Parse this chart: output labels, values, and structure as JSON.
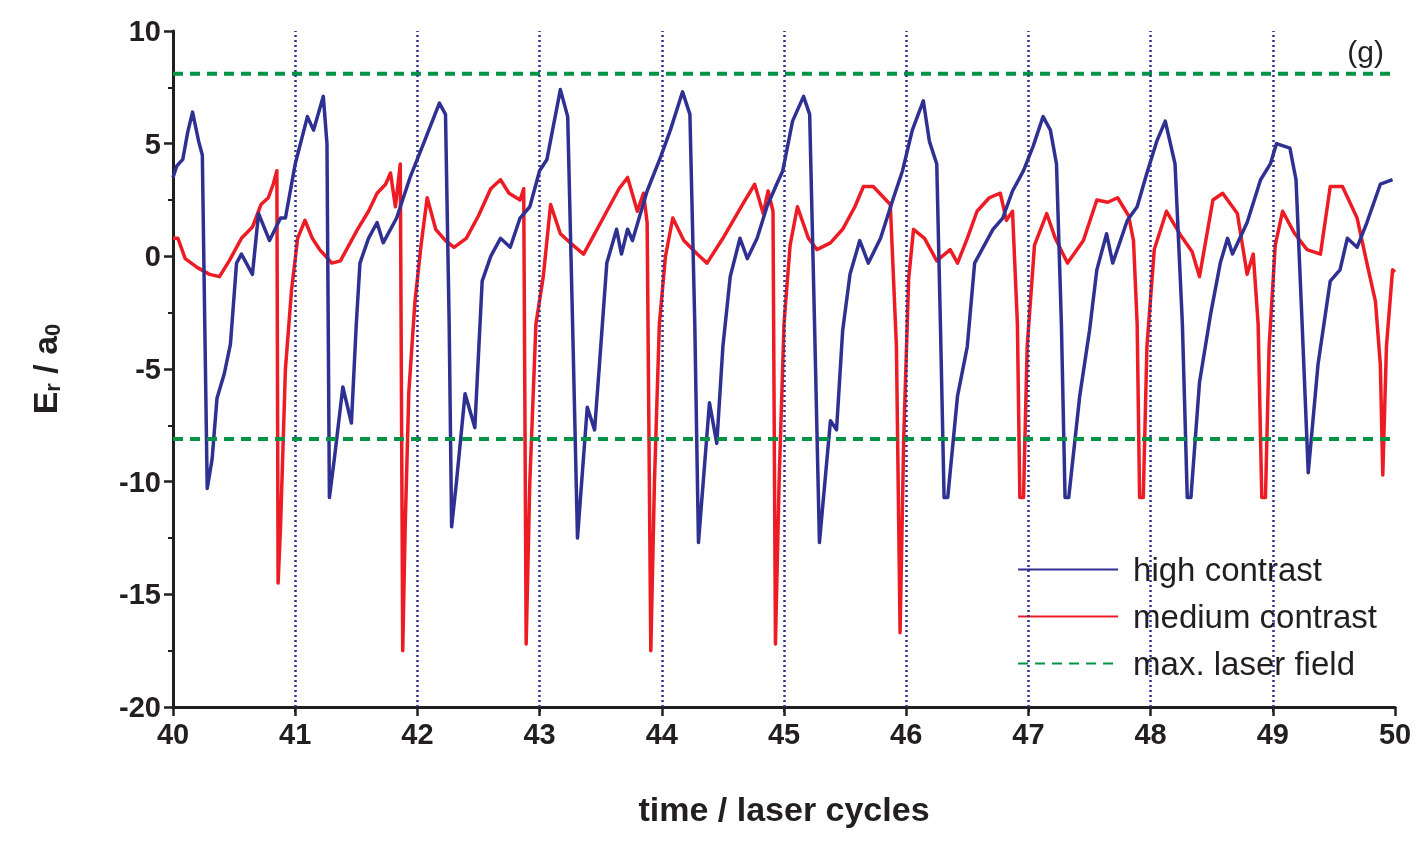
{
  "chart_data": {
    "type": "line",
    "xlabel": "time / laser cycles",
    "ylabel": "E$_{r}$ / a$_{0}$",
    "annotations": [
      "(g)"
    ],
    "xlim": [
      40,
      50
    ],
    "xticks": [
      40,
      41,
      42,
      43,
      44,
      45,
      46,
      47,
      48,
      49,
      50
    ],
    "ylim": [
      -20,
      10
    ],
    "yticks": [
      -20,
      -15,
      -10,
      -5,
      0,
      5,
      10
    ],
    "grid": false,
    "legend": "bottom right",
    "marker": "none",
    "ref_lines": [
      {
        "axis": "x",
        "value": 41,
        "color": "#2e3192",
        "line_style": "dotted"
      },
      {
        "axis": "x",
        "value": 42,
        "color": "#2e3192",
        "line_style": "dotted"
      },
      {
        "axis": "x",
        "value": 43,
        "color": "#2e3192",
        "line_style": "dotted"
      },
      {
        "axis": "x",
        "value": 44,
        "color": "#2e3192",
        "line_style": "dotted"
      },
      {
        "axis": "x",
        "value": 45,
        "color": "#2e3192",
        "line_style": "dotted"
      },
      {
        "axis": "x",
        "value": 46,
        "color": "#2e3192",
        "line_style": "dotted"
      },
      {
        "axis": "x",
        "value": 47,
        "color": "#2e3192",
        "line_style": "dotted"
      },
      {
        "axis": "x",
        "value": 48,
        "color": "#2e3192",
        "line_style": "dotted"
      },
      {
        "axis": "x",
        "value": 49,
        "color": "#2e3192",
        "line_style": "dotted"
      },
      {
        "axis": "y",
        "value": -8.1,
        "color": "#009444",
        "line_style": "dashed"
      }
    ],
    "series": [
      {
        "name": "high contrast",
        "color": "#2e3192",
        "line_style": "solid",
        "x": [
          40.0,
          40.03,
          40.08,
          40.12,
          40.16,
          40.21,
          40.24,
          40.26,
          40.28,
          40.32,
          40.36,
          40.42,
          40.47,
          40.52,
          40.56,
          40.65,
          40.7,
          40.79,
          40.88,
          40.92,
          41.0,
          41.1,
          41.15,
          41.23,
          41.26,
          41.28,
          41.32,
          41.39,
          41.46,
          41.5,
          41.53,
          41.6,
          41.67,
          41.72,
          41.83,
          41.94,
          42.05,
          42.18,
          42.23,
          42.26,
          42.28,
          42.32,
          42.39,
          42.47,
          42.53,
          42.6,
          42.68,
          42.76,
          42.84,
          42.92,
          43.0,
          43.06,
          43.17,
          43.23,
          43.27,
          43.31,
          43.39,
          43.45,
          43.49,
          43.55,
          43.63,
          43.67,
          43.72,
          43.76,
          43.88,
          43.99,
          44.07,
          44.17,
          44.23,
          44.27,
          44.3,
          44.39,
          44.45,
          44.5,
          44.56,
          44.64,
          44.7,
          44.78,
          44.86,
          44.94,
          44.99,
          45.07,
          45.16,
          45.21,
          45.25,
          45.29,
          45.38,
          45.43,
          45.48,
          45.54,
          45.62,
          45.69,
          45.79,
          45.89,
          45.97,
          46.05,
          46.14,
          46.19,
          46.25,
          46.28,
          46.31,
          46.34,
          46.42,
          46.5,
          46.56,
          46.63,
          46.71,
          46.79,
          46.87,
          46.96,
          47.04,
          47.12,
          47.18,
          47.23,
          47.27,
          47.3,
          47.33,
          47.42,
          47.5,
          47.56,
          47.64,
          47.69,
          47.81,
          47.89,
          47.97,
          48.05,
          48.12,
          48.2,
          48.26,
          48.3,
          48.33,
          48.4,
          48.49,
          48.57,
          48.63,
          48.67,
          48.79,
          48.9,
          48.98,
          49.03,
          49.14,
          49.19,
          49.24,
          49.29,
          49.37,
          49.47,
          49.55,
          49.61,
          49.69,
          49.77,
          49.88,
          49.98
        ],
        "values": [
          3.5,
          4.0,
          4.3,
          5.5,
          6.4,
          5.1,
          4.5,
          -3.0,
          -10.3,
          -9.0,
          -6.3,
          -5.2,
          -3.9,
          -0.3,
          0.1,
          -0.8,
          1.9,
          0.7,
          1.7,
          1.7,
          4.1,
          6.2,
          5.6,
          7.1,
          5.0,
          -10.7,
          -9.0,
          -5.8,
          -7.4,
          -3.0,
          -0.3,
          0.8,
          1.5,
          0.6,
          1.7,
          3.5,
          5.0,
          6.8,
          6.3,
          -3.0,
          -12.0,
          -10.0,
          -6.1,
          -7.6,
          -1.1,
          0.0,
          0.8,
          0.4,
          1.7,
          2.2,
          3.8,
          4.3,
          7.4,
          6.2,
          -3.0,
          -12.5,
          -6.7,
          -7.7,
          -4.8,
          -0.3,
          1.2,
          0.1,
          1.2,
          0.7,
          2.9,
          4.4,
          5.6,
          7.3,
          6.3,
          -3.0,
          -12.7,
          -6.5,
          -8.3,
          -4.0,
          -0.9,
          0.8,
          -0.1,
          0.8,
          2.2,
          3.2,
          3.8,
          6.0,
          7.1,
          6.3,
          -3.0,
          -12.7,
          -7.3,
          -7.7,
          -3.3,
          -0.8,
          0.7,
          -0.3,
          0.8,
          2.5,
          3.8,
          5.6,
          6.9,
          5.1,
          4.1,
          -3.0,
          -10.7,
          -10.7,
          -6.2,
          -4.0,
          -0.3,
          0.4,
          1.2,
          1.7,
          2.9,
          3.8,
          4.9,
          6.2,
          5.6,
          4.1,
          -3.0,
          -10.7,
          -10.7,
          -6.2,
          -3.3,
          -0.6,
          1.0,
          -0.3,
          1.6,
          2.2,
          3.7,
          5.1,
          6.0,
          4.1,
          -3.0,
          -10.7,
          -10.7,
          -5.6,
          -2.6,
          -0.3,
          0.8,
          0.1,
          1.5,
          3.4,
          4.1,
          5.0,
          4.8,
          3.4,
          -3.0,
          -9.6,
          -4.8,
          -1.1,
          -0.6,
          0.8,
          0.4,
          1.5,
          3.2,
          3.4
        ]
      },
      {
        "name": "medium contrast",
        "color": "#ed1c24",
        "line_style": "solid",
        "x": [
          40.0,
          40.04,
          40.1,
          40.2,
          40.3,
          40.38,
          40.46,
          40.56,
          40.65,
          40.72,
          40.78,
          40.82,
          40.85,
          40.86,
          40.88,
          40.92,
          40.97,
          41.02,
          41.08,
          41.14,
          41.2,
          41.3,
          41.37,
          41.51,
          41.6,
          41.67,
          41.74,
          41.78,
          41.82,
          41.86,
          41.88,
          41.9,
          41.93,
          41.98,
          42.03,
          42.08,
          42.15,
          42.23,
          42.3,
          42.4,
          42.5,
          42.6,
          42.68,
          42.75,
          42.84,
          42.87,
          42.89,
          42.92,
          42.97,
          43.03,
          43.09,
          43.17,
          43.25,
          43.36,
          43.45,
          43.55,
          43.65,
          43.72,
          43.8,
          43.85,
          43.88,
          43.91,
          43.94,
          43.98,
          44.03,
          44.09,
          44.18,
          44.29,
          44.37,
          44.5,
          44.66,
          44.76,
          44.83,
          44.87,
          44.91,
          44.93,
          44.96,
          45.0,
          45.05,
          45.11,
          45.2,
          45.27,
          45.38,
          45.48,
          45.58,
          45.65,
          45.73,
          45.87,
          45.92,
          45.95,
          45.98,
          46.02,
          46.06,
          46.15,
          46.25,
          46.36,
          46.42,
          46.5,
          46.58,
          46.68,
          46.77,
          46.82,
          46.87,
          46.91,
          46.93,
          46.96,
          46.99,
          47.05,
          47.15,
          47.22,
          47.32,
          47.45,
          47.56,
          47.65,
          47.73,
          47.82,
          47.86,
          47.89,
          47.91,
          47.94,
          47.97,
          48.03,
          48.13,
          48.25,
          48.34,
          48.4,
          48.51,
          48.59,
          48.71,
          48.79,
          48.84,
          48.88,
          48.91,
          48.94,
          48.97,
          49.02,
          49.08,
          49.18,
          49.28,
          49.39,
          49.47,
          49.57,
          49.69,
          49.77,
          49.84,
          49.88,
          49.9,
          49.93,
          49.98,
          50.0
        ],
        "values": [
          0.8,
          0.8,
          -0.1,
          -0.5,
          -0.8,
          -0.9,
          -0.2,
          0.8,
          1.3,
          2.3,
          2.6,
          3.2,
          3.8,
          -14.5,
          -12.0,
          -5.0,
          -1.5,
          0.8,
          1.6,
          0.8,
          0.3,
          -0.3,
          -0.2,
          1.2,
          2.0,
          2.8,
          3.2,
          3.7,
          2.2,
          4.1,
          -17.5,
          -12.0,
          -6.0,
          -2.0,
          0.5,
          2.6,
          1.2,
          0.7,
          0.4,
          0.8,
          1.8,
          3.0,
          3.4,
          2.8,
          2.5,
          3.0,
          -17.2,
          -10.0,
          -3.0,
          -0.9,
          2.3,
          1.0,
          0.6,
          0.1,
          1.0,
          2.0,
          3.0,
          3.5,
          2.0,
          2.8,
          1.5,
          -17.5,
          -10.0,
          -3.0,
          0.0,
          1.7,
          0.7,
          0.1,
          -0.3,
          0.8,
          2.3,
          3.2,
          1.9,
          2.9,
          2.0,
          -17.2,
          -10.0,
          -3.0,
          0.5,
          2.2,
          0.8,
          0.3,
          0.6,
          1.2,
          2.2,
          3.1,
          3.1,
          2.3,
          -4.0,
          -16.7,
          -8.0,
          -1.0,
          1.2,
          0.8,
          -0.2,
          0.3,
          -0.3,
          0.8,
          2.0,
          2.6,
          2.8,
          1.6,
          2.0,
          -3.0,
          -10.7,
          -10.7,
          -4.0,
          0.5,
          1.9,
          0.8,
          -0.3,
          0.7,
          2.5,
          2.4,
          2.6,
          1.8,
          0.7,
          -3.0,
          -10.7,
          -10.7,
          -4.0,
          0.3,
          2.0,
          0.9,
          0.2,
          -0.9,
          2.5,
          2.8,
          1.9,
          -0.8,
          0.1,
          -3.0,
          -10.7,
          -10.7,
          -4.0,
          0.5,
          2.0,
          1.0,
          0.3,
          0.1,
          3.1,
          3.1,
          1.7,
          -0.3,
          -2.0,
          -4.8,
          -9.7,
          -4.0,
          -0.6,
          -0.7
        ]
      },
      {
        "name": "max. laser field",
        "color": "#009444",
        "line_style": "dashed",
        "x": [
          40,
          50
        ],
        "values": [
          8.1,
          8.1
        ]
      }
    ]
  }
}
